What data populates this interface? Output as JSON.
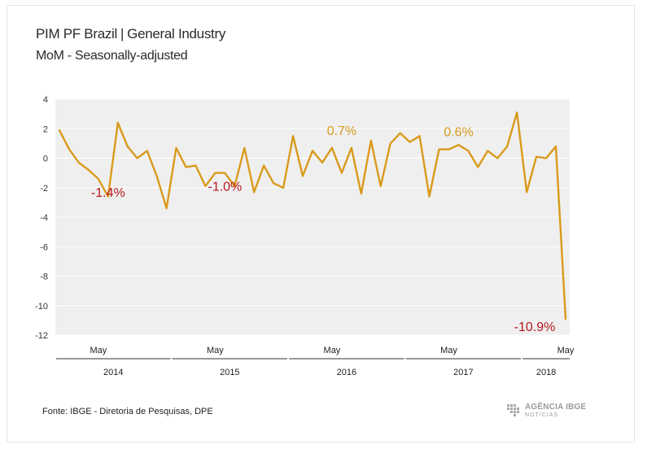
{
  "header": {
    "title_main": "PIM PF Brazil",
    "title_sep": "|",
    "title_rest": "General Industry",
    "subtitle": "MoM - Seasonally-adjusted"
  },
  "footer": {
    "source": "Fonte: IBGE - Diretoria de Pesquisas, DPE",
    "logo_line1": "AGÊNCIA IBGE",
    "logo_line2": "NOTÍCIAS"
  },
  "chart_data": {
    "type": "line",
    "title": "PIM PF Brazil | General Industry",
    "subtitle": "MoM - Seasonally-adjusted",
    "ylim": [
      -12,
      4
    ],
    "yticks": [
      4,
      2,
      0,
      -2,
      -4,
      -6,
      -8,
      -10,
      -12
    ],
    "grid": true,
    "line_color": "#D99A1C",
    "bg_color": "#EFEFEF",
    "x_month_labels": [
      {
        "label": "May",
        "index": 4
      },
      {
        "label": "May",
        "index": 16
      },
      {
        "label": "May",
        "index": 28
      },
      {
        "label": "May",
        "index": 40
      },
      {
        "label": "May",
        "index": 52
      }
    ],
    "x_year_labels": [
      {
        "label": "2014",
        "from": 0,
        "to": 11
      },
      {
        "label": "2015",
        "from": 12,
        "to": 23
      },
      {
        "label": "2016",
        "from": 24,
        "to": 35
      },
      {
        "label": "2017",
        "from": 36,
        "to": 47
      },
      {
        "label": "2018",
        "from": 48,
        "to": 52
      }
    ],
    "series": [
      {
        "values": [
          1.9,
          0.6,
          -0.3,
          -0.8,
          -1.4,
          -2.6,
          2.4,
          0.8,
          0.0,
          0.5,
          -1.2,
          -3.4,
          0.7,
          -0.6,
          -0.5,
          -1.9,
          -1.0,
          -1.0,
          -1.9,
          0.7,
          -2.3,
          -0.5,
          -1.7,
          -2.0,
          1.5,
          -1.2,
          0.5,
          -0.3,
          0.7,
          -1.0,
          0.7,
          -2.4,
          1.2,
          -1.9,
          1.0,
          1.7,
          1.1,
          1.5,
          -2.6,
          0.6,
          0.6,
          0.9,
          0.5,
          -0.6,
          0.5,
          0.0,
          0.8,
          3.1,
          -2.3,
          0.1,
          0.0,
          0.8,
          -10.9
        ]
      }
    ],
    "annotations": [
      {
        "text": "-1.4%",
        "index": 4,
        "color": "#B5191E"
      },
      {
        "text": "-1.0%",
        "index": 16,
        "color": "#B5191E"
      },
      {
        "text": "0.7%",
        "index": 28,
        "color": "#D99A1C"
      },
      {
        "text": "0.6%",
        "index": 40,
        "color": "#D99A1C"
      },
      {
        "text": "-10.9%",
        "index": 52,
        "color": "#B5191E"
      }
    ]
  }
}
